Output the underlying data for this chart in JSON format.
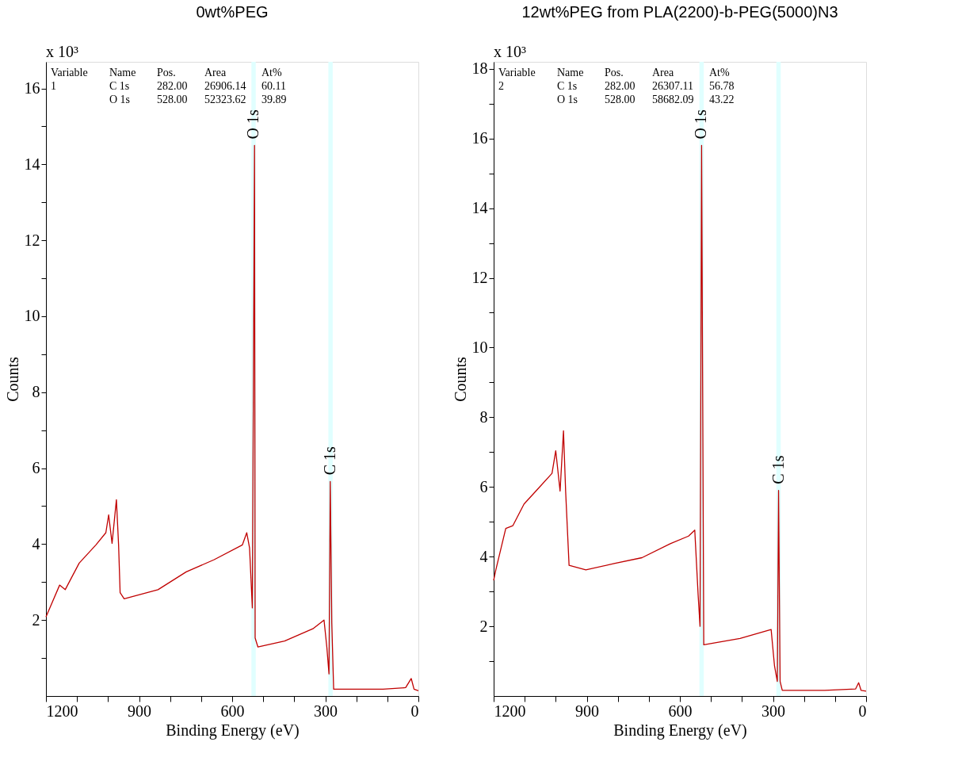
{
  "chart_data": [
    {
      "type": "line",
      "title": "0wt%PEG",
      "xlabel": "Binding Energy (eV)",
      "ylabel": "Counts",
      "x": [
        1200,
        1156,
        1138,
        1093,
        1039,
        1007,
        998,
        987,
        973,
        966,
        961,
        948,
        839,
        748,
        658,
        567,
        553,
        544,
        535,
        528,
        526,
        517,
        431,
        340,
        304,
        295,
        288,
        284,
        279,
        273,
        114,
        41,
        23,
        14,
        0
      ],
      "series": [
        {
          "color": "#c00000",
          "values": [
            2.08,
            2.92,
            2.8,
            3.5,
            3.98,
            4.3,
            4.77,
            4.02,
            5.17,
            3.98,
            2.72,
            2.56,
            2.8,
            3.27,
            3.59,
            3.98,
            4.3,
            3.9,
            2.32,
            14.5,
            1.53,
            1.29,
            1.45,
            1.77,
            2.0,
            1.29,
            0.58,
            5.65,
            1.92,
            0.18,
            0.18,
            0.22,
            0.46,
            0.18,
            0.14
          ]
        }
      ],
      "xlim": [
        1200,
        0
      ],
      "ylim": [
        0,
        16.7
      ],
      "xticks": [
        1200,
        {
          "value": 1100,
          "label": null
        },
        {
          "value": 1000,
          "label": null
        },
        900,
        {
          "value": 800,
          "label": null
        },
        {
          "value": 700,
          "label": null
        },
        600,
        {
          "value": 500,
          "label": null
        },
        {
          "value": 400,
          "label": null
        },
        300,
        {
          "value": 200,
          "label": null
        },
        {
          "value": 100,
          "label": null
        },
        0
      ],
      "yticks": [
        {
          "value": 1,
          "label": null
        },
        2,
        {
          "value": 3,
          "label": null
        },
        4,
        {
          "value": 5,
          "label": null
        },
        6,
        {
          "value": 7,
          "label": null
        },
        8,
        {
          "value": 9,
          "label": null
        },
        10,
        {
          "value": 11,
          "label": null
        },
        12,
        {
          "value": 13,
          "label": null
        },
        14,
        {
          "value": 15,
          "label": null
        },
        16
      ],
      "bands": [
        {
          "axis": "x",
          "from": 538,
          "to": 524,
          "label": "O 1s",
          "color": "#e0ffff"
        },
        {
          "axis": "x",
          "from": 290,
          "to": 276,
          "label": "C 1s",
          "color": "#e0ffff"
        }
      ],
      "annotations": [
        "x 10³",
        "Variable",
        "Name",
        "Pos.",
        "Area",
        "At%",
        "1",
        "C 1s",
        "282.00",
        "26906.14",
        "60.11",
        "O 1s",
        "528.00",
        "52323.62",
        "39.89"
      ],
      "grid": false
    },
    {
      "type": "line",
      "title": "12wt%PEG from PLA(2200)-b-PEG(5000)N3",
      "xlabel": "Binding Energy (eV)",
      "ylabel": "Counts",
      "x": [
        1200,
        1193,
        1161,
        1138,
        1102,
        1057,
        1012,
        1000,
        986,
        975,
        968,
        957,
        903,
        812,
        722,
        631,
        572,
        552,
        541,
        535,
        530,
        523,
        406,
        306,
        295,
        286,
        282,
        277,
        270,
        134,
        34,
        24,
        16,
        0
      ],
      "series": [
        {
          "color": "#c00000",
          "values": [
            3.32,
            3.62,
            4.81,
            4.89,
            5.51,
            5.95,
            6.39,
            7.04,
            5.88,
            7.61,
            5.86,
            3.75,
            3.62,
            3.8,
            3.97,
            4.37,
            4.59,
            4.76,
            2.88,
            2.0,
            15.8,
            1.47,
            1.65,
            1.91,
            0.86,
            0.42,
            5.9,
            0.42,
            0.16,
            0.16,
            0.2,
            0.38,
            0.16,
            0.14
          ]
        }
      ],
      "xlim": [
        1200,
        0
      ],
      "ylim": [
        0,
        18.2
      ],
      "xticks": [
        1200,
        {
          "value": 1100,
          "label": null
        },
        {
          "value": 1000,
          "label": null
        },
        900,
        {
          "value": 800,
          "label": null
        },
        {
          "value": 700,
          "label": null
        },
        600,
        {
          "value": 500,
          "label": null
        },
        {
          "value": 400,
          "label": null
        },
        300,
        {
          "value": 200,
          "label": null
        },
        {
          "value": 100,
          "label": null
        },
        0
      ],
      "yticks": [
        {
          "value": 1,
          "label": null
        },
        2,
        {
          "value": 3,
          "label": null
        },
        4,
        {
          "value": 5,
          "label": null
        },
        6,
        {
          "value": 7,
          "label": null
        },
        8,
        {
          "value": 9,
          "label": null
        },
        10,
        {
          "value": 11,
          "label": null
        },
        12,
        {
          "value": 13,
          "label": null
        },
        14,
        {
          "value": 15,
          "label": null
        },
        16,
        {
          "value": 17,
          "label": null
        },
        18
      ],
      "bands": [
        {
          "axis": "x",
          "from": 537,
          "to": 523,
          "label": "O 1s",
          "color": "#e0ffff"
        },
        {
          "axis": "x",
          "from": 289,
          "to": 275,
          "label": "C 1s",
          "color": "#e0ffff"
        }
      ],
      "annotations": [
        "x 10³",
        "Variable",
        "Name",
        "Pos.",
        "Area",
        "At%",
        "2",
        "C 1s",
        "282.00",
        "26307.11",
        "56.78",
        "O 1s",
        "528.00",
        "58682.09",
        "43.22"
      ],
      "grid": false
    }
  ]
}
